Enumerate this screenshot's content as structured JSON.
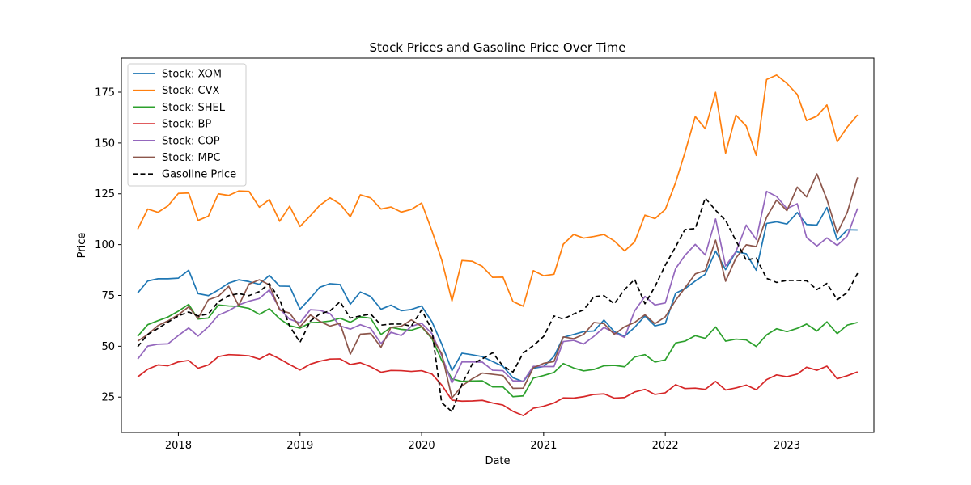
{
  "chart_data": {
    "type": "line",
    "title": "Stock Prices and Gasoline Price Over Time",
    "xlabel": "Date",
    "ylabel": "Price",
    "x_start": "2017-09",
    "x_ticks": [
      "2018",
      "2019",
      "2020",
      "2021",
      "2022",
      "2023"
    ],
    "xlim": [
      "2017-07-14",
      "2023-09-19"
    ],
    "ylim": [
      7.6,
      191.7
    ],
    "y_ticks": [
      25,
      50,
      75,
      100,
      125,
      150,
      175
    ],
    "grid": false,
    "legend_position": "top-left",
    "series": [
      {
        "name": "Stock: XOM",
        "color": "#1f77b4",
        "dash": "solid",
        "values": [
          76.2,
          82.1,
          83.2,
          83.2,
          83.5,
          87.4,
          75.9,
          74.9,
          77.7,
          81.1,
          82.7,
          81.8,
          80.5,
          84.9,
          79.6,
          79.5,
          68.2,
          73.6,
          79.0,
          80.8,
          80.4,
          70.7,
          76.7,
          74.5,
          68.2,
          70.2,
          67.5,
          68.1,
          69.8,
          62.0,
          51.2,
          38.0,
          46.6,
          45.8,
          44.9,
          42.5,
          40.1,
          34.5,
          32.6,
          39.2,
          40.0,
          45.0,
          54.4,
          55.8,
          57.2,
          57.5,
          62.9,
          57.2,
          54.9,
          59.3,
          64.9,
          60.0,
          61.2,
          76.1,
          78.3,
          82.1,
          85.4,
          96.8,
          87.7,
          96.5,
          95.5,
          87.4,
          110.4,
          111.2,
          110.1,
          115.8,
          109.9,
          109.6,
          118.3,
          102.2,
          107.3,
          107.2
        ]
      },
      {
        "name": "Stock: CVX",
        "color": "#ff7f0e",
        "dash": "solid",
        "values": [
          107.6,
          117.5,
          115.9,
          119.1,
          125.2,
          125.4,
          111.9,
          114.0,
          125.0,
          124.2,
          126.4,
          126.2,
          118.4,
          122.2,
          111.5,
          118.9,
          108.9,
          114.2,
          119.3,
          123.0,
          120.0,
          113.7,
          124.5,
          123.0,
          117.5,
          118.5,
          116.0,
          117.3,
          120.5,
          106.7,
          92.6,
          72.3,
          92.2,
          91.8,
          89.3,
          83.9,
          84.0,
          72.0,
          69.7,
          87.2,
          84.7,
          85.4,
          100.2,
          105.0,
          103.2,
          104.0,
          105.0,
          101.8,
          96.9,
          101.3,
          114.5,
          112.8,
          117.3,
          130.5,
          145.3,
          163.0,
          157.0,
          174.9,
          145.0,
          163.7,
          158.3,
          143.9,
          181.2,
          183.4,
          179.3,
          173.9,
          161.0,
          163.2,
          168.7,
          150.6,
          157.8,
          163.8
        ]
      },
      {
        "name": "Stock: SHEL",
        "color": "#2ca02c",
        "dash": "solid",
        "values": [
          54.9,
          60.6,
          62.6,
          64.4,
          67.3,
          70.6,
          63.4,
          63.9,
          70.3,
          69.8,
          69.6,
          68.6,
          65.7,
          68.5,
          63.5,
          60.1,
          58.9,
          61.6,
          61.8,
          62.4,
          63.8,
          61.8,
          64.5,
          63.8,
          55.8,
          59.3,
          58.3,
          57.9,
          59.5,
          53.7,
          43.1,
          33.9,
          32.7,
          32.9,
          33.0,
          30.0,
          30.0,
          25.2,
          25.6,
          34.3,
          35.6,
          37.1,
          41.5,
          39.3,
          37.9,
          38.6,
          40.4,
          40.6,
          39.9,
          44.7,
          45.9,
          42.2,
          43.3,
          51.6,
          52.5,
          55.2,
          53.9,
          59.5,
          52.5,
          53.5,
          53.1,
          49.9,
          55.6,
          58.6,
          57.2,
          58.8,
          60.9,
          57.5,
          62.0,
          56.2,
          60.4,
          61.7
        ]
      },
      {
        "name": "Stock: BP",
        "color": "#d62728",
        "dash": "solid",
        "values": [
          34.9,
          38.7,
          40.8,
          40.4,
          42.3,
          43.0,
          39.2,
          40.8,
          44.9,
          45.9,
          45.7,
          45.3,
          43.7,
          46.3,
          43.8,
          41.0,
          38.3,
          41.2,
          42.6,
          43.7,
          43.8,
          41.0,
          41.9,
          39.9,
          37.2,
          38.1,
          38.0,
          37.6,
          38.0,
          36.3,
          31.0,
          23.5,
          23.0,
          23.1,
          23.4,
          22.1,
          21.1,
          18.0,
          15.9,
          19.5,
          20.5,
          22.1,
          24.6,
          24.5,
          25.2,
          26.3,
          26.6,
          24.5,
          24.8,
          27.5,
          28.8,
          26.3,
          27.1,
          31.1,
          29.2,
          29.4,
          28.8,
          32.7,
          28.5,
          29.5,
          30.9,
          28.6,
          33.6,
          35.9,
          35.0,
          36.3,
          39.7,
          38.2,
          40.2,
          34.0,
          35.5,
          37.4
        ]
      },
      {
        "name": "Stock: COP",
        "color": "#9467bd",
        "dash": "solid",
        "values": [
          43.7,
          50.1,
          51.0,
          51.2,
          55.3,
          59.0,
          55.0,
          59.6,
          65.3,
          67.5,
          70.3,
          72.2,
          73.5,
          77.7,
          68.4,
          63.3,
          61.5,
          68.0,
          67.7,
          66.1,
          60.0,
          58.4,
          60.6,
          58.8,
          51.3,
          56.9,
          55.3,
          59.8,
          61.3,
          56.2,
          45.4,
          32.0,
          42.3,
          42.3,
          42.2,
          38.2,
          38.0,
          33.0,
          32.8,
          40.1,
          40.0,
          40.0,
          52.3,
          52.9,
          51.1,
          54.9,
          59.3,
          56.6,
          54.4,
          67.4,
          74.5,
          70.3,
          71.3,
          88.2,
          94.7,
          100.1,
          94.9,
          112.6,
          89.5,
          96.5,
          109.6,
          102.5,
          126.2,
          123.7,
          117.7,
          120.1,
          103.5,
          99.3,
          103.3,
          99.6,
          104.2,
          117.8
        ]
      },
      {
        "name": "Stock: MPC",
        "color": "#8c564b",
        "dash": "solid",
        "values": [
          52.5,
          55.8,
          60.2,
          62.5,
          65.5,
          69.4,
          63.7,
          72.9,
          74.6,
          79.5,
          70.0,
          80.6,
          82.7,
          80.2,
          67.8,
          66.3,
          59.5,
          65.4,
          62.3,
          59.9,
          61.3,
          46.1,
          55.9,
          56.3,
          49.5,
          59.3,
          59.8,
          63.0,
          59.8,
          54.1,
          46.5,
          24.6,
          30.5,
          34.0,
          36.8,
          36.2,
          35.6,
          29.3,
          29.4,
          39.4,
          41.6,
          42.5,
          54.6,
          53.7,
          55.8,
          61.7,
          61.1,
          55.9,
          59.6,
          61.7,
          65.5,
          61.1,
          64.5,
          72.6,
          78.7,
          85.6,
          87.3,
          102.2,
          82.0,
          93.4,
          99.9,
          99.0,
          113.5,
          121.9,
          116.7,
          128.3,
          123.5,
          134.8,
          122.2,
          105.7,
          115.8,
          133.1
        ]
      },
      {
        "name": "Gasoline Price",
        "color": "#000000",
        "dash": "dashed",
        "values": [
          49.8,
          55.8,
          58.8,
          61.9,
          64.9,
          66.9,
          64.9,
          65.9,
          71.9,
          74.9,
          75.9,
          74.9,
          76.9,
          80.9,
          72.9,
          59.9,
          51.9,
          62.4,
          65.9,
          67.4,
          71.9,
          63.9,
          64.9,
          65.9,
          60.4,
          60.9,
          60.9,
          59.9,
          67.9,
          57.9,
          22.3,
          17.8,
          31.3,
          41.3,
          43.8,
          46.8,
          40.3,
          37.3,
          46.8,
          50.3,
          54.8,
          64.9,
          63.4,
          65.9,
          67.9,
          74.4,
          74.9,
          70.9,
          77.9,
          82.9,
          70.9,
          79.3,
          89.9,
          98.9,
          107.4,
          107.9,
          122.9,
          116.9,
          111.9,
          101.9,
          92.4,
          93.4,
          83.4,
          81.4,
          82.4,
          82.4,
          82.2,
          77.9,
          80.9,
          72.9,
          76.4,
          85.9
        ]
      }
    ]
  }
}
